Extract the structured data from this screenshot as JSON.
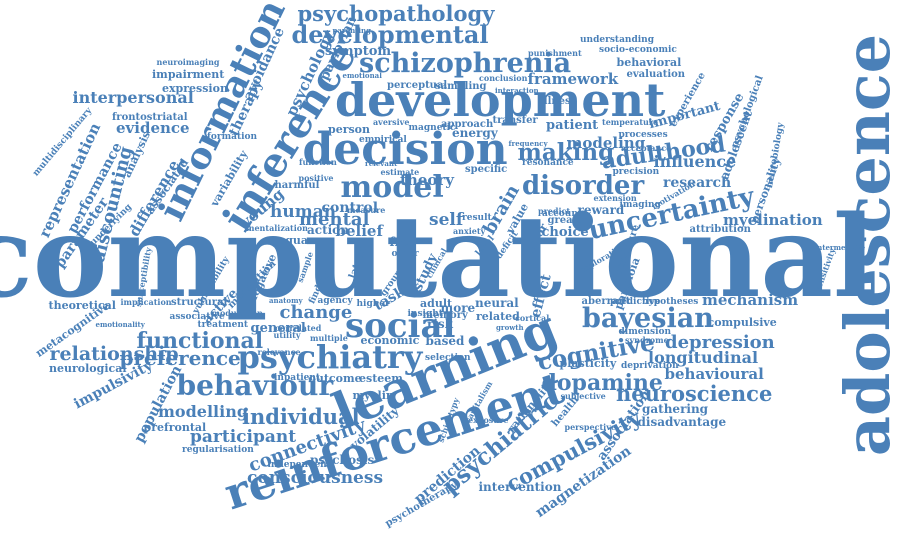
{
  "color": "#4a80b8",
  "words": [
    "computational",
    "adolescence",
    "reinforcement",
    "learning",
    "development",
    "decision",
    "psychiatry",
    "inference",
    "information",
    "schizophrenia",
    "psychopathology",
    "developmental",
    "social",
    "behaviour",
    "model",
    "disorder",
    "uncertainty",
    "bayesian",
    "cognitive",
    "dopamine",
    "psychiatric",
    "compulsivity",
    "making",
    "adulthood",
    "neuroscience",
    "functional",
    "preference",
    "relationship",
    "individual",
    "participant",
    "connectivity",
    "consciousness",
    "interpersonal",
    "framework",
    "human",
    "mental",
    "change",
    "depression",
    "longitudinal",
    "behavioural",
    "mechanism",
    "myelination",
    "influence",
    "modelling",
    "discounting",
    "representation",
    "performance",
    "parameter",
    "difference",
    "evidence",
    "impairment",
    "expression",
    "neuroimaging",
    "impulsivity",
    "population",
    "metacognitive",
    "theoretical",
    "prefrontal",
    "neurological",
    "psychosis",
    "intervention",
    "magnetization",
    "association",
    "disadvantage",
    "gathering",
    "compulsive",
    "research",
    "attribution",
    "paranoia",
    "personality",
    "psychological",
    "response",
    "adolescent",
    "important",
    "experience",
    "evaluation",
    "behavioral",
    "understanding",
    "symptom",
    "pavlovian",
    "psychology",
    "avoidance",
    "therapy",
    "young",
    "control",
    "theory",
    "self",
    "brain",
    "belief",
    "action",
    "choice",
    "active",
    "general",
    "task",
    "effect",
    "study",
    "adult",
    "more",
    "neural",
    "related",
    "based",
    "risk",
    "economic",
    "outcome",
    "esteem",
    "myelin",
    "prediction",
    "psychotherapy",
    "rationality",
    "health",
    "volatility",
    "energy",
    "patient",
    "person",
    "transfer",
    "sampling",
    "perceptual",
    "empirical",
    "harmful",
    "square",
    "mentalization",
    "frontostriatal",
    "multidisciplinary",
    "underlying",
    "analysis",
    "associated",
    "variability",
    "formation",
    "maturation",
    "vulnerability",
    "susceptibility",
    "implication",
    "emotionality",
    "structural",
    "associative",
    "treatment",
    "regularisation",
    "independent",
    "selection",
    "plasticity",
    "deprivation",
    "aberrant",
    "predictive",
    "hypotheses",
    "dimension",
    "syndrome",
    "subjective",
    "resonance",
    "modeling",
    "specific",
    "approach",
    "magnetic",
    "aversive",
    "relevant",
    "temperature",
    "acceptance",
    "processes",
    "neurobiology",
    "motivation",
    "precision",
    "extension",
    "imaging",
    "reward",
    "account",
    "value",
    "greater",
    "predict",
    "structure",
    "factor",
    "deficit",
    "level",
    "free",
    "other",
    "higher",
    "agency",
    "memory",
    "insight",
    "inpatient",
    "correlated",
    "sample",
    "finding",
    "negative",
    "latent",
    "group",
    "clinical",
    "illness",
    "punishment",
    "socio-economic",
    "conclusion",
    "interaction",
    "perspective",
    "exposure",
    "capitalism",
    "schizotypy",
    "exploration",
    "cortical",
    "growth",
    "sensitivity",
    "intermediate",
    "multiple",
    "relevance",
    "anatomy",
    "modulation",
    "utility",
    "parenting",
    "emotional",
    "frequency",
    "measure",
    "result",
    "anxiety",
    "positive",
    "estimate",
    "function"
  ]
}
